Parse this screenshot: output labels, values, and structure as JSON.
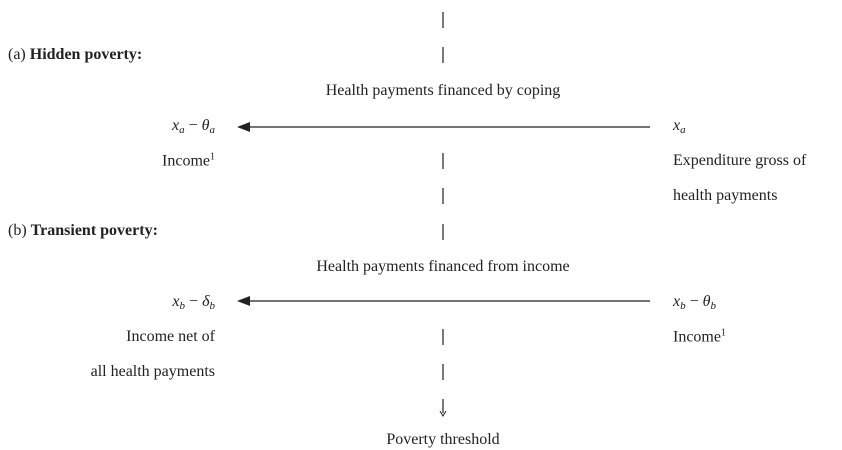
{
  "sections": [
    {
      "tag": "(a)",
      "title": "Hidden poverty:",
      "flow": "Health payments financed by coping",
      "left": {
        "expr": [
          {
            "var": "x",
            "sub": "a"
          },
          {
            "op": "−"
          },
          {
            "var": "θ",
            "sub": "a"
          }
        ],
        "lines": [
          "Income"
        ],
        "note": "1"
      },
      "right": {
        "expr": [
          {
            "var": "x",
            "sub": "a"
          }
        ],
        "lines": [
          "Expenditure gross of",
          "health payments"
        ]
      }
    },
    {
      "tag": "(b)",
      "title": "Transient poverty:",
      "flow": "Health payments financed from income",
      "left": {
        "expr": [
          {
            "var": "x",
            "sub": "b"
          },
          {
            "op": "−"
          },
          {
            "var": "δ",
            "sub": "b"
          }
        ],
        "lines": [
          "Income net of",
          "all health payments"
        ]
      },
      "right": {
        "expr": [
          {
            "var": "x",
            "sub": "b"
          },
          {
            "op": "−"
          },
          {
            "var": "θ",
            "sub": "b"
          }
        ],
        "lines": [
          "Income"
        ],
        "note": "1"
      }
    }
  ],
  "footer": "Poverty threshold"
}
